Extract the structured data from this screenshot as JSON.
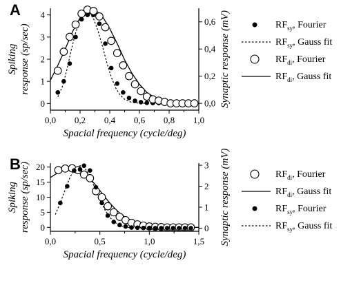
{
  "chart_data": [
    {
      "type": "scatter",
      "panel_label": "A",
      "xlabel": "Spacial frequency (cycle/deg)",
      "ylabel_left_line1": "Spiking",
      "ylabel_left_line2": "response (sp/sec)",
      "ylabel_right": "Synaptic response (mV)",
      "xlim": [
        0,
        1.0
      ],
      "ylim_left": [
        -0.3,
        4.3
      ],
      "ylim_right": [
        -0.05,
        0.7
      ],
      "xticks": [
        0,
        0.2,
        0.4,
        0.6,
        0.8,
        1.0
      ],
      "xtick_labels": [
        "0,0",
        "0,2",
        "0,4",
        "0,6",
        "0,8",
        "1,0"
      ],
      "yticks_left": [
        0,
        1,
        2,
        3,
        4
      ],
      "ytick_left_labels": [
        "0",
        "1",
        "2",
        "3",
        "4"
      ],
      "yticks_right": [
        0,
        0.2,
        0.4,
        0.6
      ],
      "ytick_right_labels": [
        "0,0",
        "0,2",
        "0,4",
        "0,6"
      ],
      "grid": false,
      "legend_position": "right",
      "series": [
        {
          "name": "RF",
          "subscript": "sy",
          "suffix": ", Fourier",
          "style": "filled",
          "axis": "left",
          "x": [
            0.05,
            0.09,
            0.13,
            0.17,
            0.21,
            0.25,
            0.29,
            0.33,
            0.37,
            0.41,
            0.45,
            0.49,
            0.53,
            0.57,
            0.61,
            0.65,
            0.69,
            0.73,
            0.77,
            0.81,
            0.85,
            0.89,
            0.93,
            0.97
          ],
          "y": [
            0.5,
            1.0,
            1.8,
            3.0,
            3.8,
            4.0,
            4.0,
            3.6,
            2.7,
            1.6,
            0.9,
            0.5,
            0.25,
            0.12,
            0.06,
            0.03,
            0.02,
            0.02,
            0.01,
            0.01,
            0.0,
            0.0,
            0.0,
            0.0
          ]
        },
        {
          "name": "RF",
          "subscript": "sy",
          "suffix": ", Gauss fit",
          "style": "dotted",
          "axis": "left",
          "x": [
            0.05,
            0.08,
            0.11,
            0.14,
            0.17,
            0.2,
            0.23,
            0.26,
            0.29,
            0.32,
            0.35,
            0.38,
            0.41,
            0.44,
            0.47,
            0.5,
            0.53,
            0.56,
            0.59,
            0.62,
            0.65,
            0.7,
            0.8,
            0.9,
            1.0
          ],
          "y": [
            0.3,
            0.75,
            1.5,
            2.4,
            3.2,
            3.75,
            4.05,
            4.1,
            3.85,
            3.3,
            2.6,
            1.85,
            1.2,
            0.7,
            0.38,
            0.19,
            0.09,
            0.04,
            0.02,
            0.01,
            0.0,
            0.0,
            0.0,
            0.0,
            0.0
          ]
        },
        {
          "name": "RF",
          "subscript": "di",
          "suffix": ", Fourier",
          "style": "open",
          "axis": "right",
          "x": [
            0.05,
            0.09,
            0.13,
            0.17,
            0.21,
            0.25,
            0.29,
            0.33,
            0.37,
            0.41,
            0.45,
            0.49,
            0.53,
            0.57,
            0.61,
            0.65,
            0.69,
            0.73,
            0.77,
            0.81,
            0.85,
            0.89,
            0.93,
            0.97
          ],
          "y": [
            0.24,
            0.38,
            0.49,
            0.58,
            0.66,
            0.69,
            0.68,
            0.64,
            0.56,
            0.46,
            0.37,
            0.28,
            0.2,
            0.14,
            0.09,
            0.05,
            0.03,
            0.02,
            0.01,
            0.0,
            0.0,
            0.0,
            0.0,
            0.0
          ]
        },
        {
          "name": "RF",
          "subscript": "di",
          "suffix": ", Gauss fit",
          "style": "solid",
          "axis": "right",
          "x": [
            0.0,
            0.05,
            0.1,
            0.15,
            0.2,
            0.25,
            0.3,
            0.35,
            0.4,
            0.45,
            0.5,
            0.55,
            0.6,
            0.65,
            0.7,
            0.75,
            0.8,
            0.85,
            0.9,
            0.95,
            1.0
          ],
          "y": [
            0.17,
            0.28,
            0.4,
            0.53,
            0.63,
            0.69,
            0.69,
            0.64,
            0.55,
            0.44,
            0.32,
            0.22,
            0.14,
            0.08,
            0.045,
            0.025,
            0.012,
            0.005,
            0.002,
            0.0,
            0.0
          ]
        }
      ]
    },
    {
      "type": "scatter",
      "panel_label": "B",
      "xlabel": "Spacial frequency (cycle/deg)",
      "ylabel_left_line1": "Spiking",
      "ylabel_left_line2": "response (sp/sec)",
      "ylabel_right": "Synaptic response (mV)",
      "xlim": [
        0,
        1.5
      ],
      "ylim_left": [
        -1.3,
        21.3
      ],
      "ylim_right": [
        -0.15,
        3.1
      ],
      "xticks": [
        0,
        0.5,
        1.0,
        1.5
      ],
      "xtick_labels": [
        "0,0",
        "0,5",
        "1,0",
        "1,5"
      ],
      "yticks_left": [
        0,
        5,
        10,
        15,
        20
      ],
      "ytick_left_labels": [
        "0",
        "5",
        "10",
        "15",
        "20"
      ],
      "yticks_right": [
        0,
        1,
        2,
        3
      ],
      "ytick_right_labels": [
        "0",
        "1",
        "2",
        "3"
      ],
      "grid": false,
      "legend_position": "right",
      "series": [
        {
          "name": "RF",
          "subscript": "di",
          "suffix": ", Fourier",
          "style": "open",
          "axis": "left",
          "x": [
            0.08,
            0.15,
            0.22,
            0.28,
            0.34,
            0.4,
            0.46,
            0.52,
            0.58,
            0.64,
            0.7,
            0.76,
            0.82,
            0.88,
            0.94,
            1.0,
            1.06,
            1.12,
            1.18,
            1.24,
            1.3,
            1.36,
            1.42
          ],
          "y": [
            19.0,
            19.5,
            19.6,
            19.0,
            17.5,
            16.3,
            12.0,
            10.0,
            7.0,
            5.0,
            3.5,
            2.4,
            1.5,
            1.0,
            0.6,
            0.3,
            0.2,
            0.1,
            0.0,
            0.0,
            0.0,
            0.0,
            0.0
          ]
        },
        {
          "name": "RF",
          "subscript": "di",
          "suffix": ", Gauss fit",
          "style": "solid",
          "axis": "left",
          "x": [
            0.0,
            0.05,
            0.1,
            0.15,
            0.2,
            0.25,
            0.3,
            0.35,
            0.4,
            0.45,
            0.5,
            0.55,
            0.6,
            0.65,
            0.7,
            0.75,
            0.8,
            0.85,
            0.9,
            0.95,
            1.0,
            1.1,
            1.2,
            1.3,
            1.4,
            1.5
          ],
          "y": [
            16.5,
            17.6,
            18.6,
            19.3,
            19.6,
            19.5,
            18.9,
            17.8,
            16.2,
            14.3,
            12.2,
            10.1,
            8.1,
            6.3,
            4.8,
            3.5,
            2.5,
            1.7,
            1.1,
            0.7,
            0.45,
            0.15,
            0.04,
            0.01,
            0.0,
            0.0
          ]
        },
        {
          "name": "RF",
          "subscript": "sy",
          "suffix": ", Fourier",
          "style": "filled",
          "axis": "right",
          "x": [
            0.1,
            0.17,
            0.24,
            0.3,
            0.34,
            0.4,
            0.46,
            0.52,
            0.58,
            0.64,
            0.7,
            0.76,
            0.82,
            0.88,
            0.94,
            1.0,
            1.06,
            1.12,
            1.18,
            1.24,
            1.3,
            1.36,
            1.42
          ],
          "y": [
            1.2,
            2.0,
            2.75,
            2.8,
            2.98,
            2.75,
            1.95,
            1.2,
            0.6,
            0.3,
            0.15,
            0.08,
            0.03,
            0.02,
            0.01,
            0.01,
            0.0,
            0.0,
            0.0,
            0.0,
            0.0,
            0.0,
            0.0
          ]
        },
        {
          "name": "RF",
          "subscript": "sy",
          "suffix": ", Gauss fit",
          "style": "dotted",
          "axis": "right",
          "x": [
            0.05,
            0.1,
            0.15,
            0.2,
            0.25,
            0.3,
            0.35,
            0.4,
            0.45,
            0.5,
            0.55,
            0.6,
            0.65,
            0.7,
            0.75,
            0.8,
            0.85,
            0.9
          ],
          "y": [
            0.65,
            1.2,
            1.85,
            2.45,
            2.85,
            2.98,
            2.85,
            2.45,
            1.9,
            1.35,
            0.88,
            0.52,
            0.28,
            0.14,
            0.06,
            0.03,
            0.01,
            0.0
          ]
        }
      ]
    }
  ]
}
